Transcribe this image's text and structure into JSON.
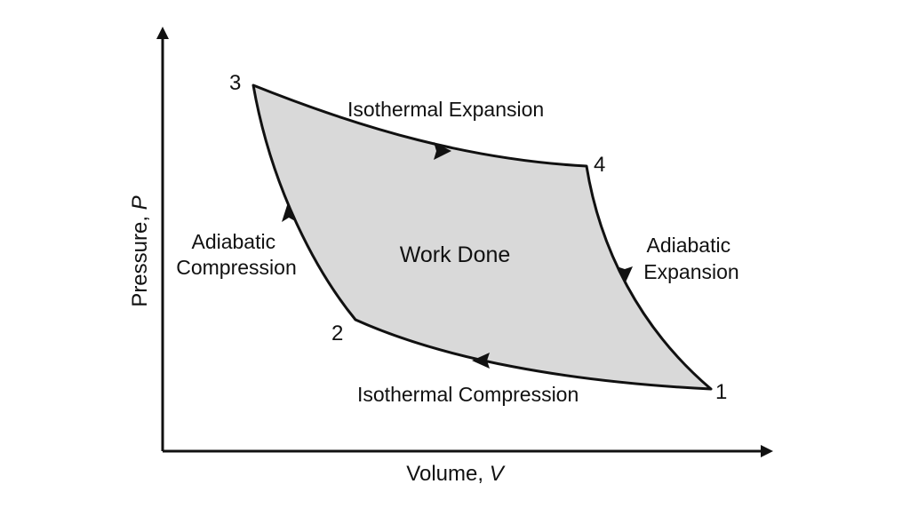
{
  "axes": {
    "x_label": "Volume, ",
    "x_symbol": "V",
    "y_label": "Pressure, ",
    "y_symbol": "P"
  },
  "points": [
    "1",
    "2",
    "3",
    "4"
  ],
  "processes": {
    "top": "Isothermal Expansion",
    "bottom": "Isothermal Compression",
    "left": [
      "Adiabatic",
      "Compression"
    ],
    "right": [
      "Adiabatic",
      "Expansion"
    ]
  },
  "center_label": "Work Done",
  "colors": {
    "fill": "#d9d9d9",
    "stroke": "#111111",
    "text": "#111111"
  },
  "icons": [
    "arrow-icon"
  ]
}
